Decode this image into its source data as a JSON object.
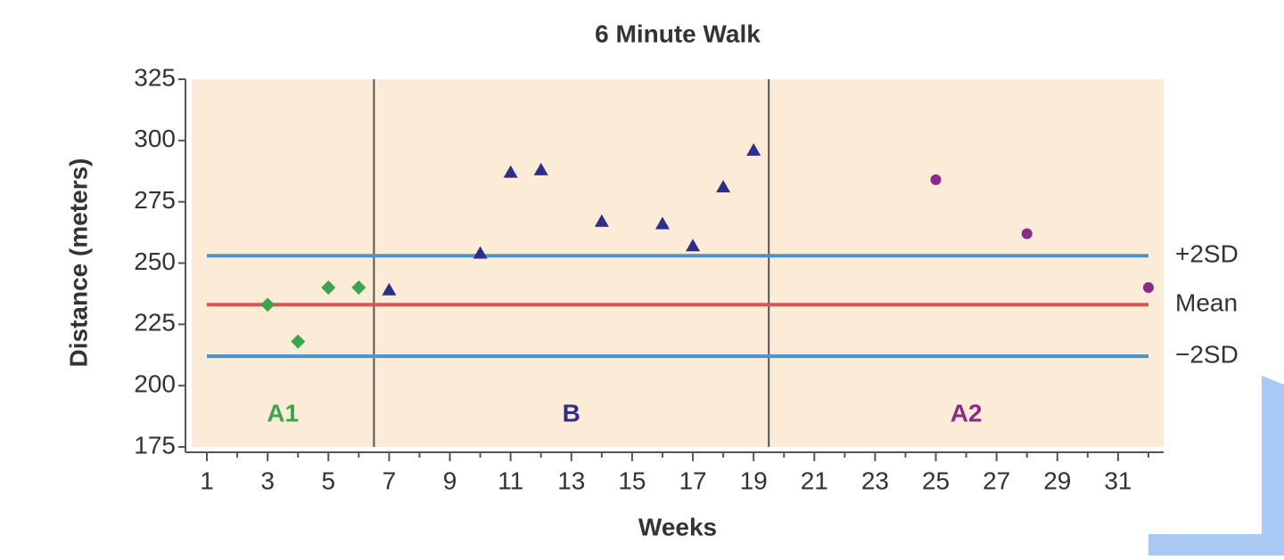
{
  "chart_data": {
    "type": "scatter",
    "title": "6 Minute Walk",
    "x_label": "Weeks",
    "y_label": "Distance (meters)",
    "xlim": [
      0.5,
      32.5
    ],
    "ylim": [
      175,
      325
    ],
    "xticks": [
      1,
      3,
      5,
      7,
      9,
      11,
      13,
      15,
      17,
      19,
      21,
      23,
      25,
      27,
      29,
      31
    ],
    "xminorticks": [
      2,
      4,
      6,
      8,
      10,
      12,
      14,
      16,
      18,
      20,
      22,
      24,
      26,
      28,
      30,
      32
    ],
    "yticks": [
      175,
      200,
      225,
      250,
      275,
      300,
      325
    ],
    "background": "#fbebd7",
    "phase_lines": [
      6.5,
      19.5
    ],
    "reference_lines": [
      {
        "label": "+2SD",
        "value": 253,
        "color": "#4b93c9"
      },
      {
        "label": "Mean",
        "value": 233,
        "color": "#d9534f"
      },
      {
        "label": "−2SD",
        "value": 212,
        "color": "#4b93c9"
      }
    ],
    "series": [
      {
        "name": "A1",
        "color": "#3aa54a",
        "marker": "diamond",
        "x": [
          3,
          4,
          5,
          6
        ],
        "values": [
          233,
          218,
          240,
          240
        ]
      },
      {
        "name": "B",
        "color": "#2e2e8a",
        "marker": "triangle",
        "x": [
          7,
          10,
          11,
          12,
          14,
          16,
          17,
          18,
          19
        ],
        "values": [
          239,
          254,
          287,
          288,
          267,
          266,
          257,
          281,
          296
        ]
      },
      {
        "name": "A2",
        "color": "#8b2a8b",
        "marker": "circle",
        "x": [
          25,
          28,
          32
        ],
        "values": [
          284,
          262,
          240
        ]
      }
    ]
  }
}
